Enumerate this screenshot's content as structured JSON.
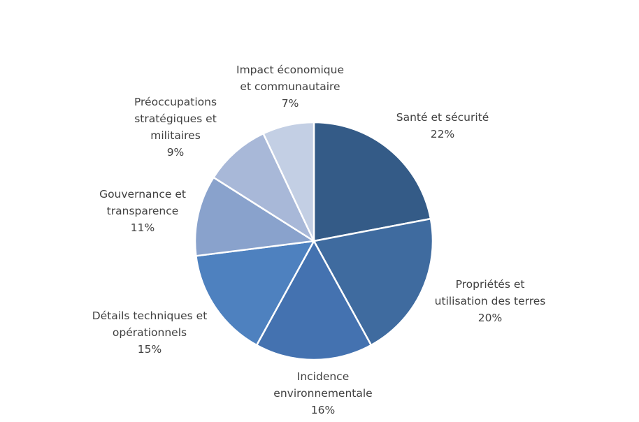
{
  "chart_data": {
    "type": "pie",
    "title": "",
    "slices": [
      {
        "label_lines": [
          "Santé et sécurité"
        ],
        "value_label": "22%",
        "value": 22,
        "color": "#345b87"
      },
      {
        "label_lines": [
          "Propriétés et",
          "utilisation des terres"
        ],
        "value_label": "20%",
        "value": 20,
        "color": "#3f6b9f"
      },
      {
        "label_lines": [
          "Incidence",
          "environnementale"
        ],
        "value_label": "16%",
        "value": 16,
        "color": "#4472b0"
      },
      {
        "label_lines": [
          "Détails techniques et",
          "opérationnels"
        ],
        "value_label": "15%",
        "value": 15,
        "color": "#4e81bf"
      },
      {
        "label_lines": [
          "Gouvernance et",
          "transparence"
        ],
        "value_label": "11%",
        "value": 11,
        "color": "#89a2cc"
      },
      {
        "label_lines": [
          "Préoccupations",
          "stratégiques et",
          "militaires"
        ],
        "value_label": "9%",
        "value": 9,
        "color": "#a8b8d8"
      },
      {
        "label_lines": [
          "Impact économique",
          "et communautaire"
        ],
        "value_label": "7%",
        "value": 7,
        "color": "#c3cfe4"
      }
    ],
    "legend": "none",
    "start_angle": "12 o'clock",
    "direction": "clockwise"
  }
}
